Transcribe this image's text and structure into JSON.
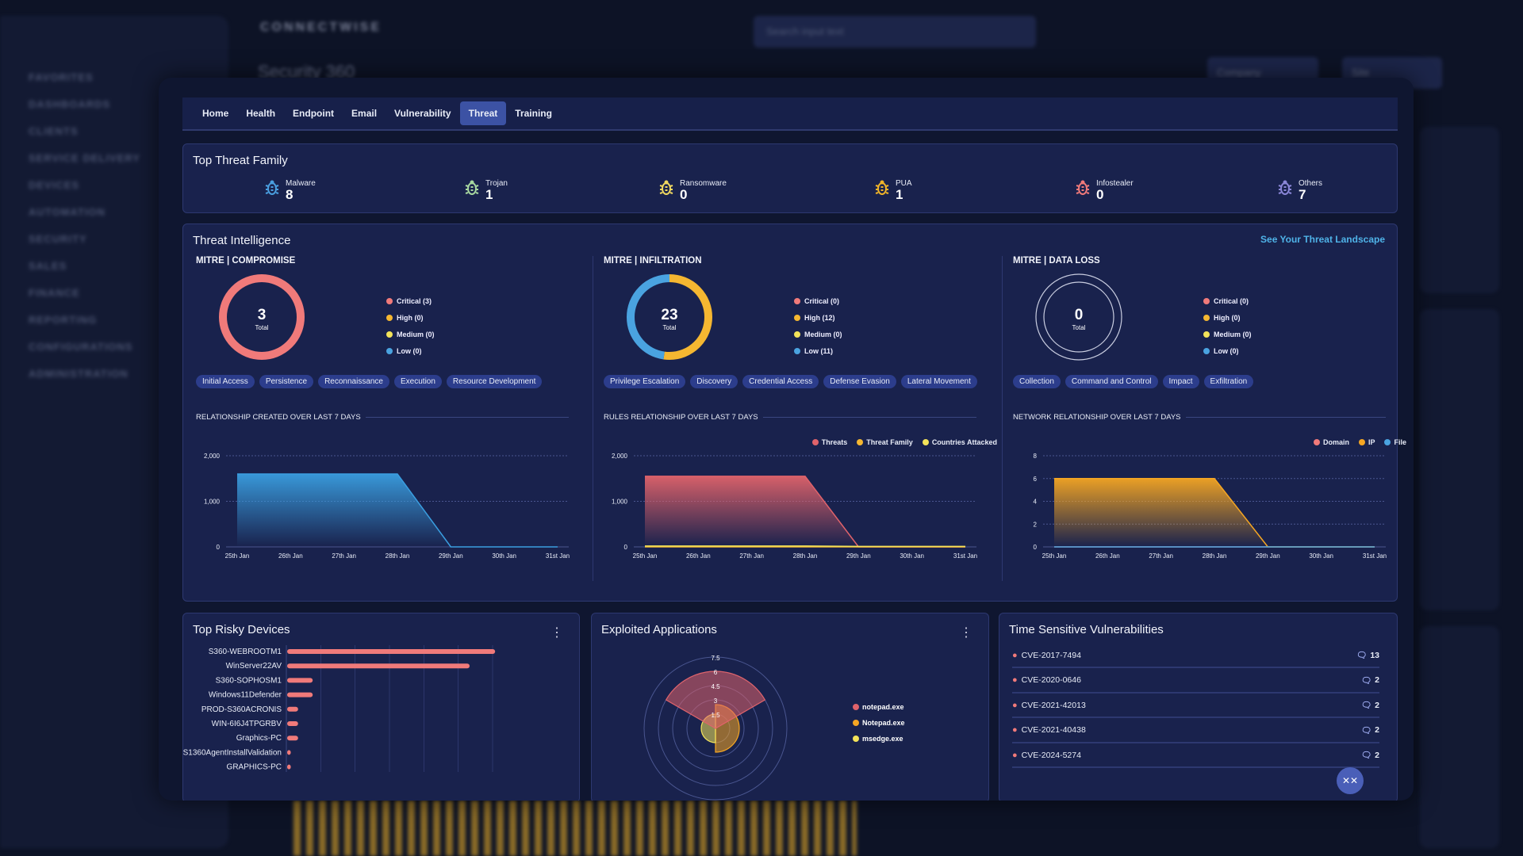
{
  "background": {
    "logo": "CONNECTWISE",
    "search_placeholder": "Search input text",
    "page_title": "Security 360",
    "company_select": "Company",
    "site_select": "Site",
    "sidebar": [
      "FAVORITES",
      "DASHBOARDS",
      "CLIENTS",
      "SERVICE DELIVERY",
      "DEVICES",
      "AUTOMATION",
      "SECURITY",
      "SALES",
      "FINANCE",
      "REPORTING",
      "CONFIGURATIONS",
      "ADMINISTRATION"
    ]
  },
  "tabs": [
    {
      "label": "Home"
    },
    {
      "label": "Health"
    },
    {
      "label": "Endpoint"
    },
    {
      "label": "Email"
    },
    {
      "label": "Vulnerability"
    },
    {
      "label": "Threat",
      "active": true
    },
    {
      "label": "Training"
    }
  ],
  "top_threat_family": {
    "title": "Top Threat Family",
    "items": [
      {
        "label": "Malware",
        "value": "8",
        "icon": "bug-icon",
        "color": "#4a9fe0"
      },
      {
        "label": "Trojan",
        "value": "1",
        "icon": "bug-icon",
        "color": "#a8d8a0"
      },
      {
        "label": "Ransomware",
        "value": "0",
        "icon": "bug-icon",
        "color": "#f0d860"
      },
      {
        "label": "PUA",
        "value": "1",
        "icon": "bug-icon",
        "color": "#f0b429"
      },
      {
        "label": "Infostealer",
        "value": "0",
        "icon": "bug-icon",
        "color": "#f07a7a"
      },
      {
        "label": "Others",
        "value": "7",
        "icon": "bug-icon",
        "color": "#8a86d8"
      }
    ]
  },
  "threat_intelligence": {
    "title": "Threat Intelligence",
    "link": "See Your Threat Landscape",
    "total_label": "Total",
    "colors": {
      "critical": "#f07a7a",
      "high": "#f5b731",
      "medium": "#f3e35a",
      "low": "#4aa3e0"
    },
    "columns": [
      {
        "title": "MITRE | COMPROMISE",
        "total": "3",
        "counts": {
          "critical": 3,
          "high": 0,
          "medium": 0,
          "low": 0
        },
        "legend": [
          "Critical (3)",
          "High (0)",
          "Medium (0)",
          "Low (0)"
        ],
        "chips": [
          "Initial Access",
          "Persistence",
          "Reconnaissance",
          "Execution",
          "Resource Development"
        ],
        "chart_title": "RELATIONSHIP CREATED OVER LAST 7 DAYS"
      },
      {
        "title": "MITRE | INFILTRATION",
        "total": "23",
        "counts": {
          "critical": 0,
          "high": 12,
          "medium": 0,
          "low": 11
        },
        "legend": [
          "Critical (0)",
          "High (12)",
          "Medium (0)",
          "Low (11)"
        ],
        "chips": [
          "Privilege Escalation",
          "Discovery",
          "Credential Access",
          "Defense Evasion",
          "Lateral Movement"
        ],
        "chart_title": "RULES RELATIONSHIP OVER LAST 7 DAYS"
      },
      {
        "title": "MITRE | DATA LOSS",
        "total": "0",
        "counts": {
          "critical": 0,
          "high": 0,
          "medium": 0,
          "low": 0
        },
        "legend": [
          "Critical (0)",
          "High (0)",
          "Medium (0)",
          "Low (0)"
        ],
        "chips": [
          "Collection",
          "Command and Control",
          "Impact",
          "Exfiltration"
        ],
        "chart_title": "NETWORK RELATIONSHIP OVER LAST 7 DAYS"
      }
    ]
  },
  "chart_data": [
    {
      "type": "area",
      "categories": [
        "25th Jan",
        "26th Jan",
        "27th Jan",
        "28th Jan",
        "29th Jan",
        "30th Jan",
        "31st Jan"
      ],
      "ylim": [
        0,
        2000
      ],
      "yticks": [
        "0",
        "1,000",
        "2,000"
      ],
      "ytick_values": [
        0,
        1000,
        2000
      ],
      "grid": true,
      "series": [
        {
          "values": [
            1600,
            1600,
            1600,
            1600,
            0,
            0,
            0
          ],
          "color": "#3a9ee0"
        }
      ]
    },
    {
      "type": "area",
      "categories": [
        "25th Jan",
        "26th Jan",
        "27th Jan",
        "28th Jan",
        "29th Jan",
        "30th Jan",
        "31st Jan"
      ],
      "ylim": [
        0,
        2000
      ],
      "yticks": [
        "0",
        "1,000",
        "2,000"
      ],
      "ytick_values": [
        0,
        1000,
        2000
      ],
      "grid": true,
      "legend": "top-right",
      "series": [
        {
          "name": "Threats",
          "values": [
            1550,
            1550,
            1550,
            1550,
            0,
            0,
            0
          ],
          "color": "#e0636b"
        },
        {
          "name": "Threat Family",
          "values": [
            0,
            0,
            0,
            0,
            0,
            0,
            0
          ],
          "color": "#f5b731"
        },
        {
          "name": "Countries Attacked",
          "values": [
            20,
            20,
            20,
            20,
            10,
            10,
            10
          ],
          "color": "#f3e35a"
        }
      ]
    },
    {
      "type": "area",
      "categories": [
        "25th Jan",
        "26th Jan",
        "27th Jan",
        "28th Jan",
        "29th Jan",
        "30th Jan",
        "31st Jan"
      ],
      "ylim": [
        0,
        8
      ],
      "yticks": [
        "0",
        "2",
        "4",
        "6",
        "8"
      ],
      "ytick_values": [
        0,
        2,
        4,
        6,
        8
      ],
      "grid": true,
      "legend": "top-right",
      "series": [
        {
          "name": "Domain",
          "values": [
            0,
            0,
            0,
            0,
            0,
            0,
            0
          ],
          "color": "#f07a7a"
        },
        {
          "name": "IP",
          "values": [
            6,
            6,
            6,
            6,
            0,
            0,
            0
          ],
          "color": "#f5a623"
        },
        {
          "name": "File",
          "values": [
            0,
            0,
            0,
            0,
            0,
            0,
            0
          ],
          "color": "#4aa3e0"
        }
      ]
    },
    {
      "type": "bar",
      "orientation": "horizontal",
      "title": "Top Risky Devices",
      "color": "#f07a7a",
      "categories": [
        "S360-WEBROOTM1",
        "WinServer22AV",
        "S360-SOPHOSM1",
        "Windows11Defender",
        "PROD-S360ACRONIS",
        "WIN-6I6J4TPGRBV",
        "Graphics-PC",
        "S1360AgentInstallValidation",
        "GRAPHICS-PC"
      ],
      "values": [
        57,
        50,
        7,
        7,
        3,
        3,
        3,
        1,
        1
      ],
      "xlim": [
        0,
        65
      ]
    },
    {
      "type": "polar-area",
      "title": "Exploited Applications",
      "rlim": [
        0,
        7.5
      ],
      "rticks": [
        "1.5",
        "3",
        "4.5",
        "6",
        "7.5"
      ],
      "rtick_values": [
        1.5,
        3,
        4.5,
        6,
        7.5
      ],
      "categories": [
        "notepad.exe",
        "Notepad.exe",
        "msedge.exe"
      ],
      "values": [
        6,
        2.5,
        1.5
      ],
      "colors": [
        "#e0636b",
        "#f5a623",
        "#f3e35a"
      ]
    }
  ],
  "bottom": {
    "risky_title": "Top Risky Devices",
    "apps_title": "Exploited Applications",
    "vuln_title": "Time Sensitive Vulnerabilities",
    "vulns": [
      {
        "id": "CVE-2017-7494",
        "count": "13"
      },
      {
        "id": "CVE-2020-0646",
        "count": "2"
      },
      {
        "id": "CVE-2021-42013",
        "count": "2"
      },
      {
        "id": "CVE-2021-40438",
        "count": "2"
      },
      {
        "id": "CVE-2024-5274",
        "count": "2"
      }
    ]
  }
}
